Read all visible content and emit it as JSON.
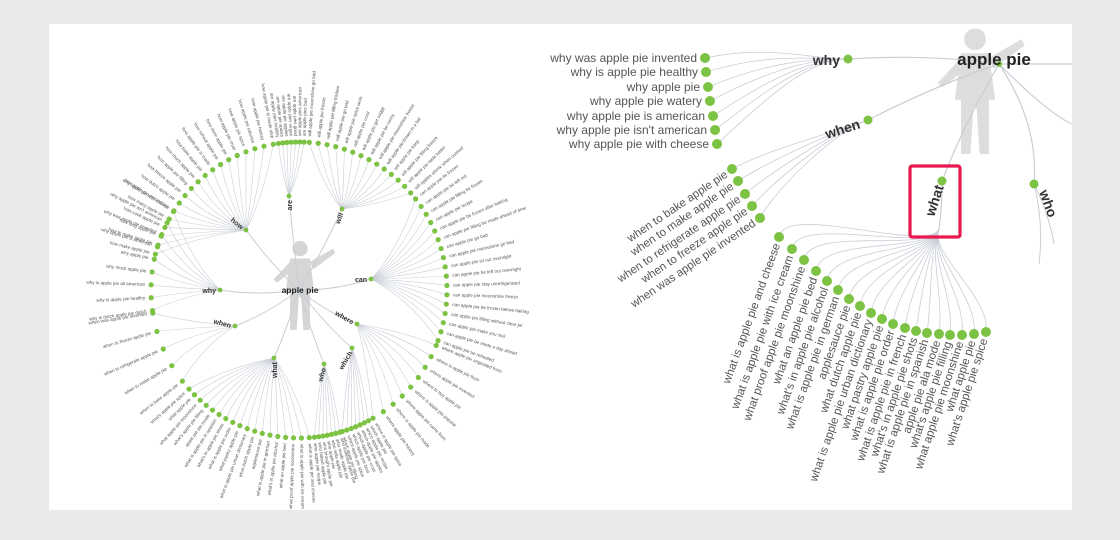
{
  "colors": {
    "background": "#eaeaea",
    "panel": "#ffffff",
    "node": "#7cc243",
    "link": "#c9ced6",
    "text": "#555555",
    "root_text": "#222222",
    "highlight": "#e8194f"
  },
  "icons": [
    "person-silhouette-icon"
  ],
  "root": "apple pie",
  "left_wheel": {
    "root": "apple pie",
    "branches": [
      {
        "name": "why",
        "leaves": [
          "why is dutch apple pie dutch",
          "why is apple pie healthy",
          "why is apple pie all american",
          "why mock apple pie",
          "why apple pie",
          "why apple pie is american",
          "why was apple pie invented",
          "why apple pie isn't american",
          "why apple pie with cheese"
        ]
      },
      {
        "name": "when",
        "leaves": [
          "when to bake apple pie",
          "when to make apple pie",
          "when to refrigerate apple pie",
          "when to freeze apple pie",
          "when was apple pie invented"
        ]
      },
      {
        "name": "what",
        "leaves": [
          "what is apple pie and cheese",
          "what is apple pie with ice cream",
          "what proof apple pie moonshine",
          "what an apple pie bed",
          "what's in apple pie alcohol",
          "what is apple pie in german",
          "applesauce pie",
          "what dutch apple pie",
          "what is apple pie urban dictionary",
          "what pastry apple pie",
          "what is apple pie order",
          "what's in apple pie shots",
          "what is apple pie in spanish",
          "apple pie ala mode",
          "what's apple pie filling",
          "what apple pie moonshine",
          "what apple pie",
          "what's apple pie spice"
        ]
      },
      {
        "name": "who",
        "leaves": [
          "who invented apple pie",
          "who made apple pie",
          "who sells apple pie",
          "who apple pie",
          "who brought apple pie",
          "who baked apple pie",
          "who apple pie recipe"
        ]
      },
      {
        "name": "which",
        "leaves": [
          "which apple pie",
          "which apple pie recipe",
          "which apple pie apples",
          "which apple pie crust",
          "which apple pie best",
          "which apple pie spice",
          "which apple pie filling"
        ]
      },
      {
        "name": "where",
        "leaves": [
          "where apple pie originated from",
          "where is apple pie from",
          "where apple pie invented",
          "where to buy apple pie",
          "where is apple pie popular",
          "where apple pie came from",
          "where is apple pie made",
          "where apple pie history",
          "where is apple pie spice"
        ]
      },
      {
        "name": "can",
        "leaves": [
          "can apple pie be frozen",
          "can apple pie be left out",
          "can apple pie filling be frozen",
          "can apple pie recipe",
          "can apple pie be frozen after baking",
          "can apple pie filling be made ahead of time",
          "can apple pie go bad",
          "can apple pie moonshine go bad",
          "can apple pie sit out overnight",
          "can apple pie be left out overnight",
          "can apple pie stay unrefrigerated",
          "can apple pie moonshine freeze",
          "can apple pie be frozen before baking",
          "can apple pie filling without clear jel",
          "can apple pie make you sick",
          "can apple pie be made a day ahead",
          "can apple pie be reheated"
        ]
      },
      {
        "name": "will",
        "leaves": [
          "will apple pie moonshine go bad",
          "will apple pie freeze",
          "will apple pie filling thicken",
          "will apple pie go bad",
          "will apple pie spice work",
          "will apple pie crust",
          "will apple pie get soggy",
          "will apple pie be runny",
          "will apple pie moonshine freeze",
          "will apple pie brown in a foil",
          "will apple pie keep",
          "will apple pie filling freeze",
          "will apple pie taste better",
          "will apples shrink when cooked"
        ]
      },
      {
        "name": "are",
        "leaves": [
          "are apple pies healthy",
          "are apple pie spices",
          "are apple pie apples",
          "are apple pies vegan",
          "are apple pies good",
          "are apple pies american",
          "are apple pies bad"
        ]
      },
      {
        "name": "how",
        "leaves": [
          "how make apple pie",
          "how to make apple pie",
          "how long apple pie",
          "how cook apple pie",
          "how many apple pie",
          "how apple pie moonshine",
          "how dutch apple pie",
          "how freeze apple pie",
          "how apple pie filling",
          "how much apple pie",
          "how bake apple pie",
          "how apple pie is made",
          "how reheat apple pie",
          "how store apple pie",
          "how apple pie crust",
          "how apple pie spice",
          "how apple pie calories",
          "how apple pie history",
          "how apple pie is made step"
        ]
      }
    ]
  },
  "right_zoom": {
    "root": "apple pie",
    "why": {
      "name": "why",
      "leaves": [
        "why was apple pie invented",
        "why is apple pie healthy",
        "why apple pie",
        "why apple pie watery",
        "why apple pie is american",
        "why apple pie isn't american",
        "why apple pie with cheese"
      ]
    },
    "when": {
      "name": "when",
      "leaves": [
        "when to bake apple pie",
        "when to make apple pie",
        "when to refrigerate apple pie",
        "when to freeze apple pie",
        "when was apple pie invented"
      ]
    },
    "what": {
      "name": "what",
      "leaves": [
        "what is apple pie and cheese",
        "what is apple pie with ice cream",
        "what proof apple pie moonshine",
        "what an apple pie bed",
        "what's in apple pie alcohol",
        "what is apple pie in german",
        "applesauce pie",
        "what dutch apple pie",
        "what is apple pie urban dictionary",
        "what pastry apple pie",
        "what is apple pie order",
        "what is apple pie in french",
        "what's in apple pie shots",
        "what is apple pie in spanish",
        "apple pie ala mode",
        "what's apple pie filling",
        "what apple pie moonshine",
        "what apple pie",
        "what's apple pie spice"
      ]
    },
    "who": {
      "name": "who"
    }
  }
}
